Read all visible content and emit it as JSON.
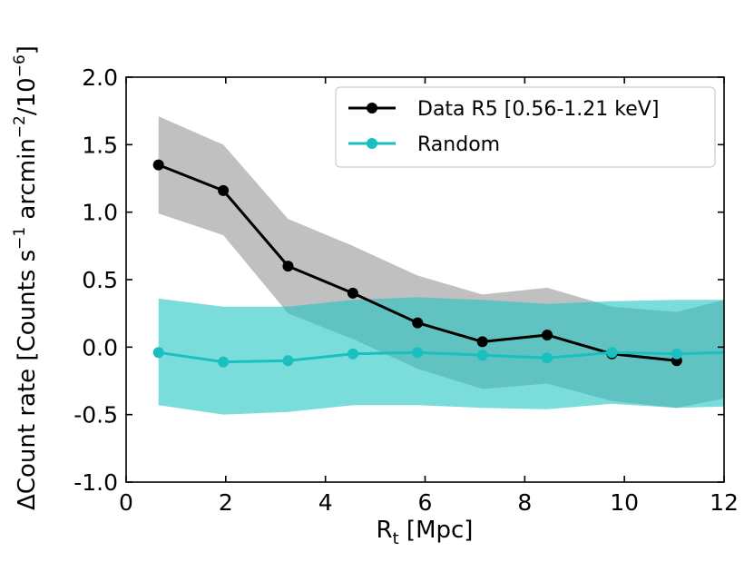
{
  "chart_data": {
    "type": "line",
    "xlabel_main": "R",
    "xlabel_sub": "t",
    "xlabel_rest": " [Mpc]",
    "ylabel_prefix": "ΔCount rate [Counts s",
    "ylabel_exp1": "−1",
    "ylabel_mid": " arcmin",
    "ylabel_exp2": "−2",
    "ylabel_mid2": "/10",
    "ylabel_exp3": "−6",
    "ylabel_suffix": "]",
    "xlim": [
      0,
      12
    ],
    "ylim": [
      -1.0,
      2.0
    ],
    "xticks": [
      0,
      2,
      4,
      6,
      8,
      10,
      12
    ],
    "xtick_labels": [
      "0",
      "2",
      "4",
      "6",
      "8",
      "10",
      "12"
    ],
    "yticks": [
      -1.0,
      -0.5,
      0.0,
      0.5,
      1.0,
      1.5,
      2.0
    ],
    "ytick_labels": [
      "-1.0",
      "-0.5",
      "0.0",
      "0.5",
      "1.0",
      "1.5",
      "2.0"
    ],
    "legend_position": "top-right",
    "grid": false,
    "series": [
      {
        "name": "Data R5 [0.56-1.21 keV]",
        "color": "#000000",
        "band_color": "#bdbdbd",
        "x": [
          0.65,
          1.95,
          3.25,
          4.55,
          5.85,
          7.15,
          8.45,
          9.75,
          11.05
        ],
        "y": [
          1.35,
          1.16,
          0.6,
          0.4,
          0.18,
          0.04,
          0.09,
          -0.05,
          -0.1
        ],
        "band": {
          "x": [
            0.65,
            1.95,
            3.25,
            4.55,
            5.85,
            7.15,
            8.45,
            9.75,
            11.05,
            12.0
          ],
          "upper": [
            1.71,
            1.5,
            0.95,
            0.75,
            0.53,
            0.39,
            0.44,
            0.3,
            0.26,
            0.35
          ],
          "lower": [
            0.99,
            0.83,
            0.25,
            0.06,
            -0.16,
            -0.31,
            -0.27,
            -0.4,
            -0.45,
            -0.38
          ]
        }
      },
      {
        "name": "Random",
        "color": "#1abfbf",
        "band_color": "#1cc3c3",
        "x": [
          0.65,
          1.95,
          3.25,
          4.55,
          5.85,
          7.15,
          8.45,
          9.75,
          11.05,
          12.0
        ],
        "y": [
          -0.04,
          -0.11,
          -0.1,
          -0.05,
          -0.04,
          -0.06,
          -0.08,
          -0.04,
          -0.05,
          -0.04
        ],
        "band": {
          "x": [
            0.65,
            1.95,
            3.25,
            4.55,
            5.85,
            7.15,
            8.45,
            9.75,
            11.05,
            12.0
          ],
          "upper": [
            0.36,
            0.3,
            0.3,
            0.35,
            0.37,
            0.35,
            0.32,
            0.34,
            0.35,
            0.35
          ],
          "lower": [
            -0.43,
            -0.5,
            -0.48,
            -0.43,
            -0.43,
            -0.45,
            -0.46,
            -0.42,
            -0.45,
            -0.44
          ]
        }
      }
    ]
  }
}
